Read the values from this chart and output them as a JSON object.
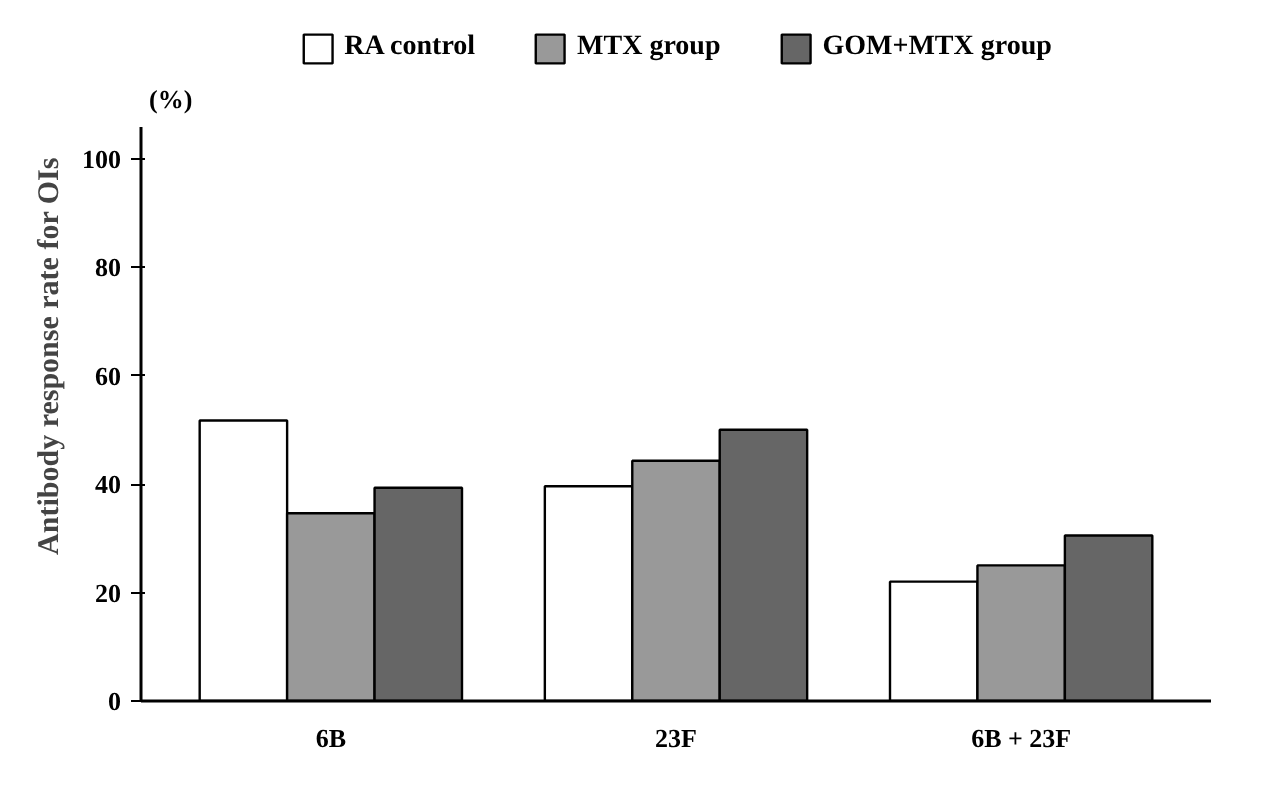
{
  "chart_data": {
    "type": "bar",
    "ylabel": "Antibody response rate for OIs",
    "categories": [
      "6B",
      "23F",
      "6B + 23F"
    ],
    "series": [
      {
        "name": "RA control",
        "color": "#ffffff",
        "values": [
          51.7,
          39.6,
          22
        ]
      },
      {
        "name": "MTX group",
        "color": "#999999",
        "values": [
          34.6,
          44.3,
          25
        ]
      },
      {
        "name": "GOM+MTX group",
        "color": "#666666",
        "values": [
          39.3,
          50,
          30.5
        ]
      }
    ],
    "ylim": [
      0,
      106
    ],
    "yticks": [
      0,
      20,
      40,
      60,
      80,
      100
    ],
    "grid": false,
    "legend": "top",
    "annotations": [
      "(%)"
    ]
  }
}
